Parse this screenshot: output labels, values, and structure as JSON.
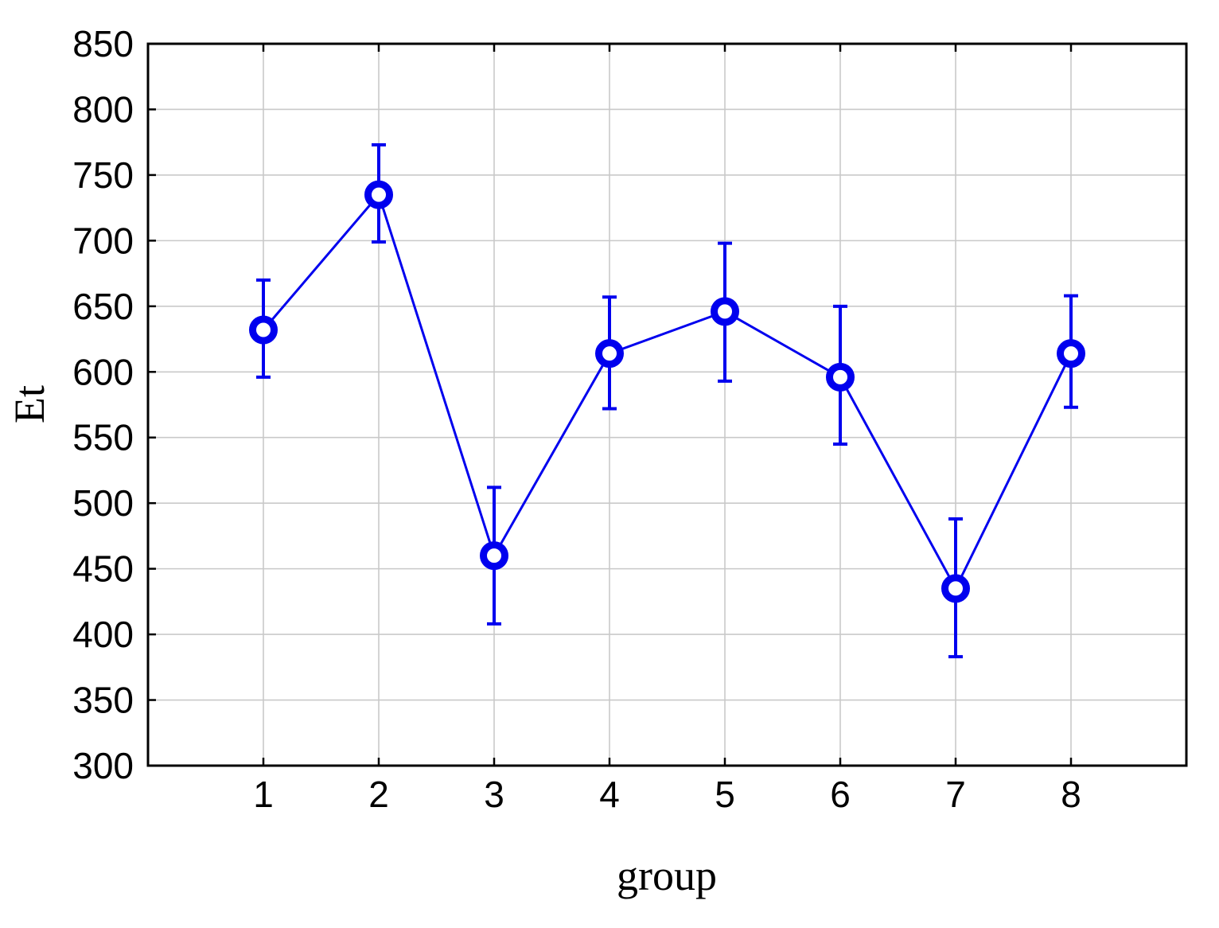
{
  "chart_data": {
    "type": "line",
    "title": "",
    "xlabel": "group",
    "ylabel": "Et",
    "categories": [
      "1",
      "2",
      "3",
      "4",
      "5",
      "6",
      "7",
      "8"
    ],
    "series": [
      {
        "name": "Et",
        "values": [
          632,
          735,
          460,
          614,
          646,
          596,
          435,
          614
        ],
        "error_low": [
          596,
          699,
          408,
          572,
          593,
          545,
          383,
          573
        ],
        "error_high": [
          670,
          773,
          512,
          657,
          698,
          650,
          488,
          658
        ]
      }
    ],
    "ylim": [
      300,
      850
    ],
    "ytick_step": 50,
    "grid": true,
    "legend": false,
    "marker": "open-circle",
    "colors": {
      "series": "#0000EE",
      "grid": "#C9C9C9",
      "frame": "#000000",
      "tick_label": "#000000",
      "background": "#FFFFFF"
    }
  }
}
